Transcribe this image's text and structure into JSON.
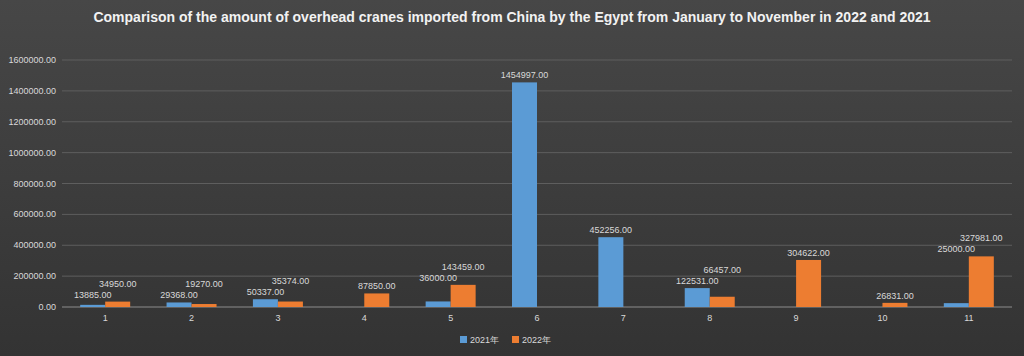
{
  "chart_data": {
    "type": "bar",
    "title": "Comparison of the amount of overhead cranes imported from China by the Egypt from January to November in 2022 and 2021",
    "categories": [
      "1",
      "2",
      "3",
      "4",
      "5",
      "6",
      "7",
      "8",
      "9",
      "10",
      "11"
    ],
    "series": [
      {
        "name": "2021年",
        "color": "#5b9bd5",
        "values": [
          13885,
          29368,
          50337,
          null,
          36000,
          1454997,
          452256,
          122531,
          null,
          null,
          25000
        ],
        "value_labels": [
          "13885.00",
          "29368.00",
          "50337.00",
          null,
          "36000.00",
          "1454997.00",
          "452256.00",
          "122531.00",
          null,
          null,
          "25000.00"
        ]
      },
      {
        "name": "2022年",
        "color": "#ed7d31",
        "values": [
          34950,
          19270,
          35374,
          87850,
          143459,
          null,
          null,
          66457,
          304622,
          26831,
          327981
        ],
        "value_labels": [
          "34950.00",
          "19270.00",
          "35374.00",
          "87850.00",
          "143459.00",
          null,
          null,
          "66457.00",
          "304622.00",
          "26831.00",
          "327981.00"
        ]
      }
    ],
    "ylim": [
      0,
      1600000
    ],
    "yticks": [
      {
        "value": 0,
        "label": "0.00"
      },
      {
        "value": 200000,
        "label": "200000.00"
      },
      {
        "value": 400000,
        "label": "400000.00"
      },
      {
        "value": 600000,
        "label": "600000.00"
      },
      {
        "value": 800000,
        "label": "800000.00"
      },
      {
        "value": 1000000,
        "label": "1000000.00"
      },
      {
        "value": 1200000,
        "label": "1200000.00"
      },
      {
        "value": 1400000,
        "label": "1400000.00"
      },
      {
        "value": 1600000,
        "label": "1600000.00"
      }
    ],
    "grid": true,
    "legend": "bottom",
    "data_labels": true
  }
}
